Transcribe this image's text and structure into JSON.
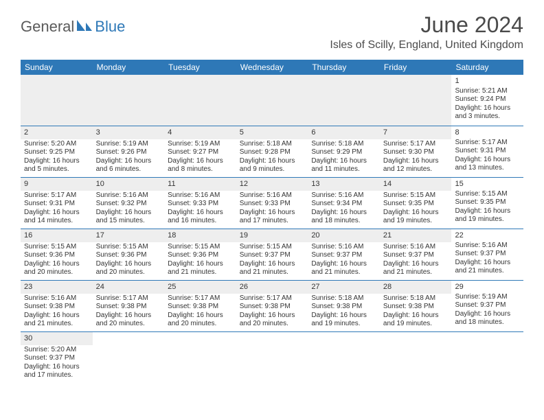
{
  "logo": {
    "general": "General",
    "blue": "Blue"
  },
  "title": "June 2024",
  "location": "Isles of Scilly, England, United Kingdom",
  "colors": {
    "header_bg": "#2e78b7",
    "header_text": "#ffffff",
    "border": "#2e78b7",
    "shaded_bg": "#eeeeee",
    "text": "#333333"
  },
  "dayNames": [
    "Sunday",
    "Monday",
    "Tuesday",
    "Wednesday",
    "Thursday",
    "Friday",
    "Saturday"
  ],
  "weeks": [
    [
      {
        "empty": true,
        "shaded": true
      },
      {
        "empty": true,
        "shaded": true
      },
      {
        "empty": true,
        "shaded": true
      },
      {
        "empty": true,
        "shaded": true
      },
      {
        "empty": true,
        "shaded": true
      },
      {
        "empty": true,
        "shaded": true
      },
      {
        "num": "1",
        "sunrise": "Sunrise: 5:21 AM",
        "sunset": "Sunset: 9:24 PM",
        "daylight1": "Daylight: 16 hours",
        "daylight2": "and 3 minutes."
      }
    ],
    [
      {
        "num": "2",
        "shaded": true,
        "sunrise": "Sunrise: 5:20 AM",
        "sunset": "Sunset: 9:25 PM",
        "daylight1": "Daylight: 16 hours",
        "daylight2": "and 5 minutes."
      },
      {
        "num": "3",
        "shaded": true,
        "sunrise": "Sunrise: 5:19 AM",
        "sunset": "Sunset: 9:26 PM",
        "daylight1": "Daylight: 16 hours",
        "daylight2": "and 6 minutes."
      },
      {
        "num": "4",
        "shaded": true,
        "sunrise": "Sunrise: 5:19 AM",
        "sunset": "Sunset: 9:27 PM",
        "daylight1": "Daylight: 16 hours",
        "daylight2": "and 8 minutes."
      },
      {
        "num": "5",
        "shaded": true,
        "sunrise": "Sunrise: 5:18 AM",
        "sunset": "Sunset: 9:28 PM",
        "daylight1": "Daylight: 16 hours",
        "daylight2": "and 9 minutes."
      },
      {
        "num": "6",
        "shaded": true,
        "sunrise": "Sunrise: 5:18 AM",
        "sunset": "Sunset: 9:29 PM",
        "daylight1": "Daylight: 16 hours",
        "daylight2": "and 11 minutes."
      },
      {
        "num": "7",
        "shaded": true,
        "sunrise": "Sunrise: 5:17 AM",
        "sunset": "Sunset: 9:30 PM",
        "daylight1": "Daylight: 16 hours",
        "daylight2": "and 12 minutes."
      },
      {
        "num": "8",
        "sunrise": "Sunrise: 5:17 AM",
        "sunset": "Sunset: 9:31 PM",
        "daylight1": "Daylight: 16 hours",
        "daylight2": "and 13 minutes."
      }
    ],
    [
      {
        "num": "9",
        "shaded": true,
        "sunrise": "Sunrise: 5:17 AM",
        "sunset": "Sunset: 9:31 PM",
        "daylight1": "Daylight: 16 hours",
        "daylight2": "and 14 minutes."
      },
      {
        "num": "10",
        "shaded": true,
        "sunrise": "Sunrise: 5:16 AM",
        "sunset": "Sunset: 9:32 PM",
        "daylight1": "Daylight: 16 hours",
        "daylight2": "and 15 minutes."
      },
      {
        "num": "11",
        "shaded": true,
        "sunrise": "Sunrise: 5:16 AM",
        "sunset": "Sunset: 9:33 PM",
        "daylight1": "Daylight: 16 hours",
        "daylight2": "and 16 minutes."
      },
      {
        "num": "12",
        "shaded": true,
        "sunrise": "Sunrise: 5:16 AM",
        "sunset": "Sunset: 9:33 PM",
        "daylight1": "Daylight: 16 hours",
        "daylight2": "and 17 minutes."
      },
      {
        "num": "13",
        "shaded": true,
        "sunrise": "Sunrise: 5:16 AM",
        "sunset": "Sunset: 9:34 PM",
        "daylight1": "Daylight: 16 hours",
        "daylight2": "and 18 minutes."
      },
      {
        "num": "14",
        "shaded": true,
        "sunrise": "Sunrise: 5:15 AM",
        "sunset": "Sunset: 9:35 PM",
        "daylight1": "Daylight: 16 hours",
        "daylight2": "and 19 minutes."
      },
      {
        "num": "15",
        "sunrise": "Sunrise: 5:15 AM",
        "sunset": "Sunset: 9:35 PM",
        "daylight1": "Daylight: 16 hours",
        "daylight2": "and 19 minutes."
      }
    ],
    [
      {
        "num": "16",
        "shaded": true,
        "sunrise": "Sunrise: 5:15 AM",
        "sunset": "Sunset: 9:36 PM",
        "daylight1": "Daylight: 16 hours",
        "daylight2": "and 20 minutes."
      },
      {
        "num": "17",
        "shaded": true,
        "sunrise": "Sunrise: 5:15 AM",
        "sunset": "Sunset: 9:36 PM",
        "daylight1": "Daylight: 16 hours",
        "daylight2": "and 20 minutes."
      },
      {
        "num": "18",
        "shaded": true,
        "sunrise": "Sunrise: 5:15 AM",
        "sunset": "Sunset: 9:36 PM",
        "daylight1": "Daylight: 16 hours",
        "daylight2": "and 21 minutes."
      },
      {
        "num": "19",
        "shaded": true,
        "sunrise": "Sunrise: 5:15 AM",
        "sunset": "Sunset: 9:37 PM",
        "daylight1": "Daylight: 16 hours",
        "daylight2": "and 21 minutes."
      },
      {
        "num": "20",
        "shaded": true,
        "sunrise": "Sunrise: 5:16 AM",
        "sunset": "Sunset: 9:37 PM",
        "daylight1": "Daylight: 16 hours",
        "daylight2": "and 21 minutes."
      },
      {
        "num": "21",
        "shaded": true,
        "sunrise": "Sunrise: 5:16 AM",
        "sunset": "Sunset: 9:37 PM",
        "daylight1": "Daylight: 16 hours",
        "daylight2": "and 21 minutes."
      },
      {
        "num": "22",
        "sunrise": "Sunrise: 5:16 AM",
        "sunset": "Sunset: 9:37 PM",
        "daylight1": "Daylight: 16 hours",
        "daylight2": "and 21 minutes."
      }
    ],
    [
      {
        "num": "23",
        "shaded": true,
        "sunrise": "Sunrise: 5:16 AM",
        "sunset": "Sunset: 9:38 PM",
        "daylight1": "Daylight: 16 hours",
        "daylight2": "and 21 minutes."
      },
      {
        "num": "24",
        "shaded": true,
        "sunrise": "Sunrise: 5:17 AM",
        "sunset": "Sunset: 9:38 PM",
        "daylight1": "Daylight: 16 hours",
        "daylight2": "and 20 minutes."
      },
      {
        "num": "25",
        "shaded": true,
        "sunrise": "Sunrise: 5:17 AM",
        "sunset": "Sunset: 9:38 PM",
        "daylight1": "Daylight: 16 hours",
        "daylight2": "and 20 minutes."
      },
      {
        "num": "26",
        "shaded": true,
        "sunrise": "Sunrise: 5:17 AM",
        "sunset": "Sunset: 9:38 PM",
        "daylight1": "Daylight: 16 hours",
        "daylight2": "and 20 minutes."
      },
      {
        "num": "27",
        "shaded": true,
        "sunrise": "Sunrise: 5:18 AM",
        "sunset": "Sunset: 9:38 PM",
        "daylight1": "Daylight: 16 hours",
        "daylight2": "and 19 minutes."
      },
      {
        "num": "28",
        "shaded": true,
        "sunrise": "Sunrise: 5:18 AM",
        "sunset": "Sunset: 9:38 PM",
        "daylight1": "Daylight: 16 hours",
        "daylight2": "and 19 minutes."
      },
      {
        "num": "29",
        "sunrise": "Sunrise: 5:19 AM",
        "sunset": "Sunset: 9:37 PM",
        "daylight1": "Daylight: 16 hours",
        "daylight2": "and 18 minutes."
      }
    ],
    [
      {
        "num": "30",
        "shaded": true,
        "sunrise": "Sunrise: 5:20 AM",
        "sunset": "Sunset: 9:37 PM",
        "daylight1": "Daylight: 16 hours",
        "daylight2": "and 17 minutes."
      },
      {
        "empty": true
      },
      {
        "empty": true
      },
      {
        "empty": true
      },
      {
        "empty": true
      },
      {
        "empty": true
      },
      {
        "empty": true
      }
    ]
  ]
}
